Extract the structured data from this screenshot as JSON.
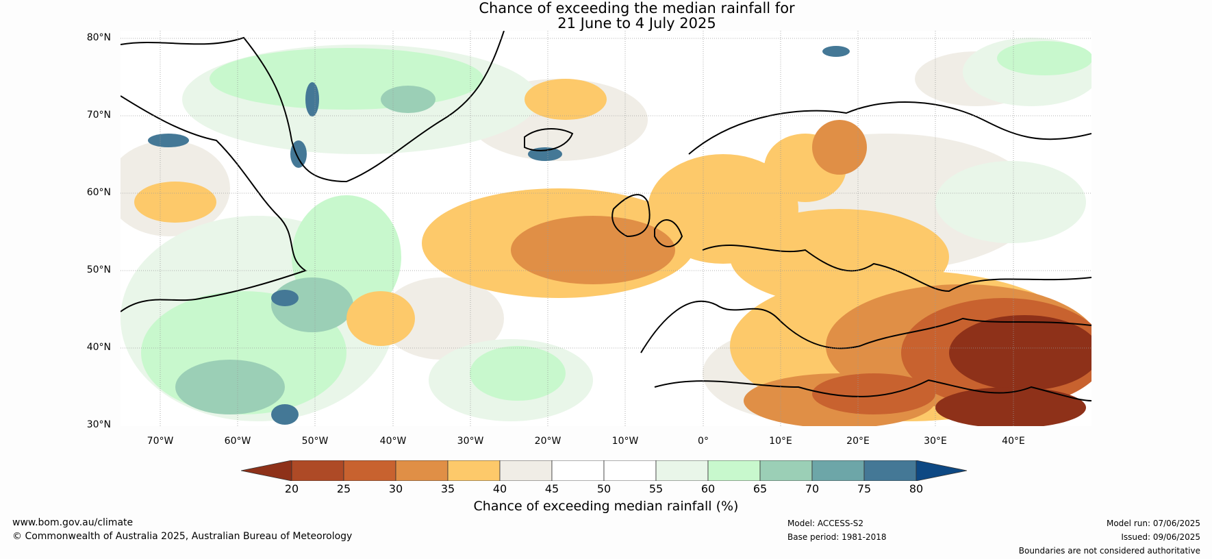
{
  "title_line1": "Chance of exceeding the median rainfall for",
  "title_line2": "21 June to 4 July 2025",
  "lat_labels": [
    "80°N",
    "70°N",
    "60°N",
    "50°N",
    "40°N",
    "30°N"
  ],
  "lon_labels": [
    "70°W",
    "60°W",
    "50°W",
    "40°W",
    "30°W",
    "20°W",
    "10°W",
    "0°",
    "10°E",
    "20°E",
    "30°E",
    "40°E"
  ],
  "colorbar": {
    "ticks": [
      "20",
      "25",
      "30",
      "35",
      "40",
      "45",
      "50",
      "55",
      "60",
      "65",
      "70",
      "75",
      "80"
    ],
    "colors": [
      "#8e3119",
      "#ae4a26",
      "#c8622f",
      "#e08f46",
      "#fdc96a",
      "#f0ede6",
      "#ffffff",
      "#ffffff",
      "#e9f6e9",
      "#c8f8cd",
      "#9bcfb6",
      "#6da6a8",
      "#447896",
      "#0d4883"
    ],
    "label": "Chance of exceeding median rainfall (%)"
  },
  "footer": {
    "website": "www.bom.gov.au/climate",
    "copyright": "© Commonwealth of Australia 2025, Australian Bureau of Meteorology",
    "model": "Model: ACCESS-S2",
    "base_period": "Base period: 1981-2018",
    "model_run": "Model run: 07/06/2025",
    "issued": "Issued: 09/06/2025",
    "disclaimer": "Boundaries are not considered authoritative"
  }
}
